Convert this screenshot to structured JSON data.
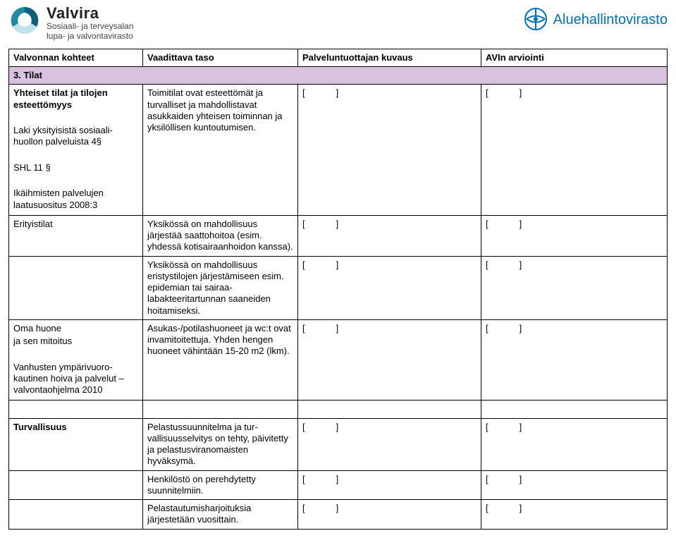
{
  "colors": {
    "section_bg": "#d9c2e0",
    "border": "#000000",
    "avi_blue": "#0070b8",
    "valvira_teal": "#1f8aa3"
  },
  "header": {
    "left": {
      "name": "Valvira",
      "sub1": "Sosiaali- ja terveysalan",
      "sub2": "lupa- ja valvontavirasto"
    },
    "right": {
      "name": "Aluehallintovirasto"
    }
  },
  "table": {
    "headers": {
      "c1": "Valvonnan kohteet",
      "c2": "Vaadittava taso",
      "c3": "Palveluntuottajan kuvaus",
      "c4": "AVIn arviointi"
    },
    "section": "3. Tilat",
    "rows": [
      {
        "c1_bold": "Yhteiset tilat ja tilojen esteettömyys",
        "c1_lines": [
          "",
          "Laki yksityisistä sosiaali­huollon palveluista 4§",
          "",
          "SHL 11 §",
          "",
          "Ikäihmisten palvelujen laatusuositus 2008:3"
        ],
        "c2": "Toimitilat ovat esteettömät ja turvalliset ja mahdollistavat asukkaiden yhteisen toimin­nan ja yksilöllisen kuntoutu­misen.",
        "c3": "[        ]",
        "c4": "[        ]"
      },
      {
        "c1": "Erityistilat",
        "c2": "Yksikössä on mahdollisuus järjestää saattohoitoa (esim. yhdessä kotisairaanhoidon kanssa).",
        "c3": "[        ]",
        "c4": "[        ]"
      },
      {
        "c1": "",
        "c2": "Yksikössä on mahdollisuus eristystilojen järjestämiseen esim. epidemian tai sairaa­labakteeritartunnan saanei­den hoitamiseksi.",
        "c3": "[        ]",
        "c4": "[        ]"
      },
      {
        "c1_lines": [
          "Oma huone",
          "ja sen mitoitus",
          "",
          "Vanhusten ympärivuoro­kautinen hoiva ja palvelut –valvontaohjelma 2010"
        ],
        "c2": "Asukas-/potilashuoneet ja wc:t ovat invamitoitettuja. Yhden hengen huoneet vä­hintään 15-20 m2 (lkm).",
        "c3": "[        ]",
        "c4": "[        ]"
      },
      {
        "spacer": true
      },
      {
        "c1_bold": "Turvallisuus",
        "c2": "Pelastussuunnitelma ja tur­vallisuusselvitys on tehty, päivitetty ja pelastusviran­omaisten hyväksymä.",
        "c3": "[        ]",
        "c4": "[        ]"
      },
      {
        "c1": "",
        "c2": "Henkilöstö on perehdytetty suunnitelmiin.",
        "c3": "[        ]",
        "c4": "[        ]"
      },
      {
        "c1": "",
        "c2": "Pelastautumisharjoituksia järjestetään vuosittain.",
        "c3": "[        ]",
        "c4": "[        ]"
      }
    ]
  }
}
